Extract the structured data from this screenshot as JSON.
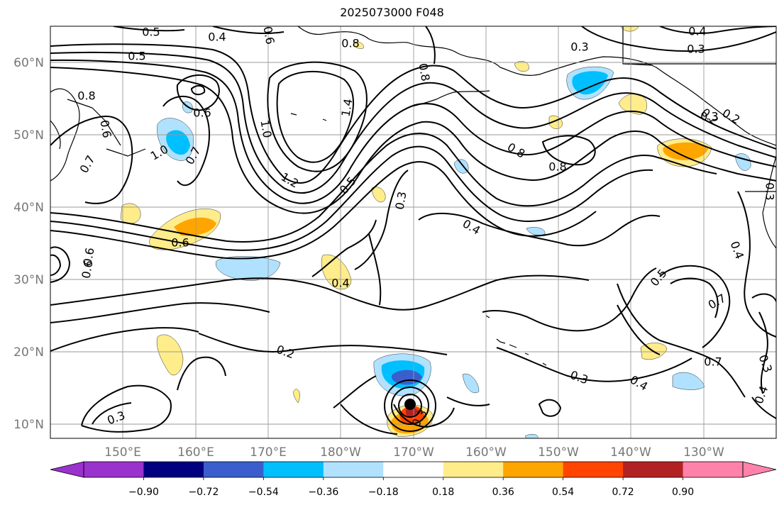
{
  "title": "2025073000 F048",
  "map": {
    "lon_ticks": [
      "150°E",
      "160°E",
      "170°E",
      "180°W",
      "170°W",
      "160°W",
      "150°W",
      "140°W",
      "130°W"
    ],
    "lat_ticks": [
      "60°N",
      "50°N",
      "40°N",
      "30°N",
      "20°N",
      "10°N"
    ],
    "contour_labels": [
      "0.5",
      "0.4",
      "0.6",
      "0.8",
      "0.5",
      "0.8",
      "0.3",
      "0.3",
      "0.4",
      "0.8",
      "0.6",
      "0.6",
      "0.7",
      "1.0",
      "0.7",
      "1.0",
      "1.2",
      "1.4",
      "0.5",
      "0.3",
      "0.8",
      "0.8",
      "0.4",
      "0.4",
      "0.6",
      "0.6",
      "0.4",
      "0.5",
      "0.7",
      "0.7",
      "0.2",
      "0.3",
      "0.4",
      "0.3",
      "0.3",
      "0.3",
      "0.4",
      "0.3",
      "0.2",
      "0.2",
      "0.3",
      "0.6"
    ]
  },
  "colorbar": {
    "tick_labels": [
      "−0.90",
      "−0.72",
      "−0.54",
      "−0.36",
      "−0.18",
      "0.18",
      "0.36",
      "0.54",
      "0.72",
      "0.90"
    ],
    "colors": [
      "#9a32cd",
      "#000080",
      "#3a5fcd",
      "#00bfff",
      "#b0e2ff",
      "#ffffff",
      "#ffec8b",
      "#ffa500",
      "#ff4500",
      "#b22222",
      "#ff82ab"
    ]
  }
}
